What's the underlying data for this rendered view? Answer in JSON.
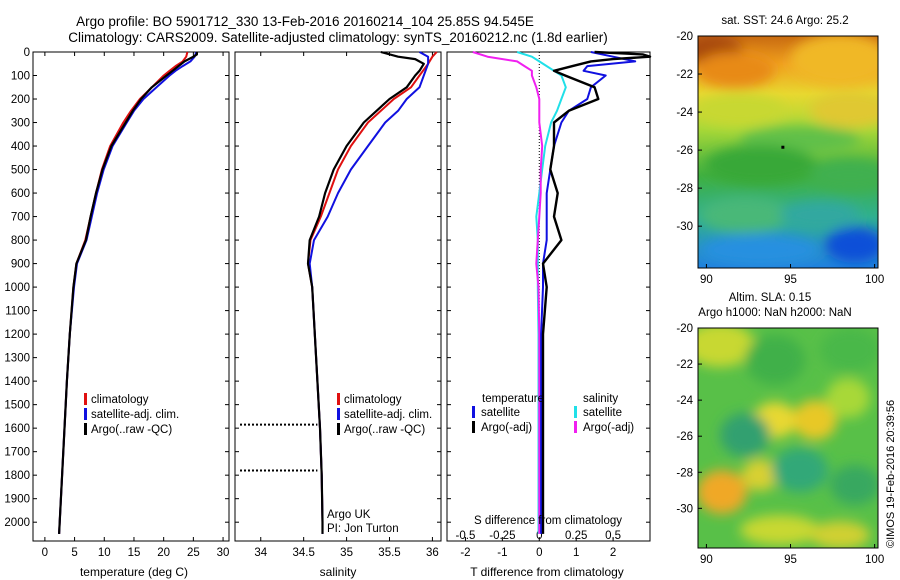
{
  "header": {
    "line1": "Argo profile: BO 5901712_330 13-Feb-2016 20160214_104 25.85S 94.545E",
    "line2": "Climatology: CARS2009. Satellite-adjusted climatology: synTS_20160212.nc (1.8d earlier)"
  },
  "credit": "©IMOS 19-Feb-2016 20:39:56",
  "colors": {
    "climatology": "#e01010",
    "satellite": "#1010e0",
    "argo": "#000000",
    "sal_satellite": "#20e0e8",
    "sal_argo": "#f020f0"
  },
  "chart_data": [
    {
      "type": "line",
      "id": "temperature",
      "xlabel": "temperature (deg C)",
      "xlim": [
        -2,
        31
      ],
      "ylim": [
        2080,
        0
      ],
      "xticks": [
        0,
        5,
        10,
        15,
        20,
        25,
        30
      ],
      "yticks": [
        0,
        100,
        200,
        300,
        400,
        500,
        600,
        700,
        800,
        900,
        1000,
        1100,
        1200,
        1300,
        1400,
        1500,
        1600,
        1700,
        1800,
        1900,
        2000
      ],
      "legend": [
        "climatology",
        "satellite-adj. clim.",
        "Argo(..raw -QC)"
      ],
      "series": [
        {
          "name": "climatology",
          "depth": [
            0,
            20,
            40,
            60,
            80,
            100,
            150,
            200,
            250,
            300,
            400,
            500,
            600,
            700,
            800,
            900,
            1000,
            1200,
            1400,
            1600,
            1800,
            2000,
            2050
          ],
          "values": [
            24.0,
            23.8,
            23.2,
            22.0,
            21.0,
            20.0,
            18.0,
            16.0,
            14.5,
            13.2,
            11.0,
            9.6,
            8.6,
            7.7,
            6.8,
            5.3,
            4.8,
            4.2,
            3.7,
            3.3,
            2.9,
            2.5,
            2.4
          ]
        },
        {
          "name": "satellite-adj. clim.",
          "depth": [
            0,
            20,
            40,
            60,
            80,
            100,
            150,
            200,
            250,
            300,
            400,
            500,
            600,
            700,
            800,
            900,
            1000,
            1200,
            1400,
            1600,
            1800,
            2000,
            2050
          ],
          "values": [
            25.5,
            25.2,
            24.5,
            23.2,
            22.0,
            21.0,
            18.8,
            16.6,
            15.0,
            13.8,
            11.4,
            9.9,
            8.8,
            7.9,
            7.0,
            5.4,
            4.9,
            4.2,
            3.7,
            3.3,
            2.9,
            2.5,
            2.4
          ]
        },
        {
          "name": "Argo(..raw -QC)",
          "depth": [
            0,
            10,
            20,
            40,
            60,
            80,
            100,
            150,
            200,
            250,
            300,
            400,
            500,
            600,
            700,
            800,
            900,
            1000,
            1200,
            1400,
            1600,
            1800,
            2000,
            2050
          ],
          "values": [
            25.6,
            25.6,
            25.0,
            23.5,
            22.5,
            21.5,
            20.5,
            18.0,
            16.2,
            14.8,
            13.6,
            11.2,
            9.7,
            8.6,
            7.7,
            6.9,
            5.3,
            4.8,
            4.2,
            3.7,
            3.3,
            2.9,
            2.5,
            2.4
          ]
        }
      ]
    },
    {
      "type": "line",
      "id": "salinity",
      "xlabel": "salinity",
      "xlim": [
        33.7,
        36.1
      ],
      "ylim": [
        2080,
        0
      ],
      "xticks": [
        34,
        34.5,
        35,
        35.5,
        36
      ],
      "legend": [
        "climatology",
        "satellite-adj. clim.",
        "Argo(..raw -QC)"
      ],
      "annotation": [
        "Argo UK",
        "PI: Jon Turton"
      ],
      "qc_depths": [
        1585,
        1780
      ],
      "series": [
        {
          "name": "climatology",
          "depth": [
            0,
            20,
            50,
            100,
            150,
            200,
            250,
            300,
            400,
            500,
            600,
            700,
            800,
            900,
            1000,
            1200,
            1400,
            1600,
            1800,
            2000,
            2050
          ],
          "values": [
            36.05,
            36.0,
            35.95,
            35.85,
            35.75,
            35.55,
            35.4,
            35.25,
            35.05,
            34.9,
            34.8,
            34.7,
            34.58,
            34.55,
            34.6,
            34.63,
            34.66,
            34.69,
            34.71,
            34.72,
            34.72
          ]
        },
        {
          "name": "satellite-adj. clim.",
          "depth": [
            0,
            20,
            50,
            100,
            150,
            200,
            250,
            300,
            400,
            500,
            600,
            700,
            800,
            900,
            1000,
            1200,
            1400,
            1600,
            1800,
            2000,
            2050
          ],
          "values": [
            35.85,
            35.95,
            35.95,
            35.9,
            35.85,
            35.7,
            35.6,
            35.45,
            35.25,
            35.05,
            34.9,
            34.78,
            34.62,
            34.57,
            34.6,
            34.63,
            34.66,
            34.69,
            34.71,
            34.72,
            34.72
          ]
        },
        {
          "name": "Argo(..raw -QC)",
          "depth": [
            0,
            20,
            30,
            50,
            80,
            100,
            150,
            200,
            250,
            300,
            400,
            500,
            600,
            700,
            800,
            900,
            1000,
            1200,
            1400,
            1600,
            1800,
            2000,
            2050
          ],
          "values": [
            35.4,
            35.6,
            35.8,
            35.9,
            35.85,
            35.8,
            35.7,
            35.5,
            35.35,
            35.2,
            35.0,
            34.85,
            34.75,
            34.68,
            34.57,
            34.55,
            34.6,
            34.63,
            34.66,
            34.69,
            34.71,
            34.72,
            34.72
          ]
        }
      ]
    },
    {
      "type": "line",
      "id": "difference",
      "xlabel": "T difference from climatology",
      "xlabel_top": "S difference from climatology",
      "xlim": [
        -2.5,
        3.0
      ],
      "ylim": [
        2080,
        0
      ],
      "xticks": [
        -2,
        -1,
        0,
        1,
        2
      ],
      "sticks_top": [
        -0.5,
        -0.25,
        0,
        0.25,
        0.5
      ],
      "sticks_top_labels": [
        "-0.5",
        "-0.25",
        "0",
        "0.25",
        "0.5"
      ],
      "legend_groups": [
        "temperature",
        "salinity"
      ],
      "legend": {
        "temperature": [
          "satellite",
          "Argo(-adj)"
        ],
        "salinity": [
          "satellite",
          "Argo(-adj)"
        ]
      },
      "series": [
        {
          "name": "temperature satellite",
          "depth": [
            0,
            20,
            40,
            60,
            80,
            100,
            150,
            200,
            250,
            300,
            400,
            500,
            600,
            700,
            800,
            900,
            1000,
            1200,
            1400,
            1600,
            1800,
            2000,
            2050
          ],
          "values": [
            1.4,
            2.0,
            2.6,
            1.3,
            1.2,
            1.8,
            1.4,
            1.3,
            0.8,
            0.6,
            0.4,
            0.3,
            0.2,
            0.2,
            0.2,
            0.1,
            0.1,
            0.05,
            0.05,
            0.05,
            0.05,
            0.05,
            0.05
          ]
        },
        {
          "name": "temperature Argo(-adj)",
          "depth": [
            0,
            10,
            20,
            30,
            40,
            60,
            80,
            100,
            150,
            200,
            250,
            300,
            400,
            500,
            600,
            700,
            800,
            900,
            1000,
            1200,
            1400,
            1600,
            1800,
            2000,
            2050
          ],
          "values": [
            1.5,
            2.8,
            3.0,
            2.0,
            1.4,
            0.9,
            0.4,
            0.7,
            1.5,
            1.6,
            0.8,
            0.4,
            0.4,
            0.3,
            0.5,
            0.4,
            0.6,
            0.1,
            0.2,
            0.1,
            0.1,
            0.1,
            0.1,
            0.1,
            0.1
          ]
        },
        {
          "name": "salinity satellite",
          "depth": [
            0,
            20,
            40,
            60,
            80,
            100,
            150,
            200,
            250,
            300,
            400,
            500,
            600,
            700,
            800,
            900,
            1000,
            1200,
            1400,
            1600,
            1800,
            2000,
            2050
          ],
          "values": [
            -0.15,
            -0.05,
            0.0,
            0.05,
            0.1,
            0.15,
            0.18,
            0.15,
            0.12,
            0.08,
            0.04,
            0.02,
            0.0,
            -0.02,
            -0.01,
            -0.01,
            -0.01,
            -0.005,
            -0.005,
            -0.005,
            -0.005,
            -0.005,
            -0.005
          ]
        },
        {
          "name": "salinity Argo(-adj)",
          "depth": [
            0,
            20,
            40,
            60,
            80,
            100,
            150,
            200,
            250,
            300,
            400,
            500,
            600,
            700,
            800,
            900,
            1000,
            1200,
            1400,
            1600,
            1800,
            2000,
            2050
          ],
          "values": [
            -0.45,
            -0.35,
            -0.15,
            -0.1,
            -0.05,
            -0.05,
            -0.02,
            0.0,
            0.0,
            0.0,
            0.02,
            0.01,
            0.01,
            0.0,
            -0.01,
            -0.02,
            -0.005,
            0.0,
            0.0,
            0.0,
            0.0,
            0.0,
            0.0
          ]
        }
      ]
    },
    {
      "type": "heatmap",
      "id": "sst-map",
      "title": "sat. SST: 24.6 Argo: 25.2",
      "xlim": [
        89.5,
        100.2
      ],
      "ylim": [
        -20,
        -32.2
      ],
      "xticks": [
        90,
        95,
        100
      ],
      "yticks": [
        -20,
        -22,
        -24,
        -26,
        -28,
        -30
      ]
    },
    {
      "type": "heatmap",
      "id": "sla-map",
      "title_lines": [
        "Altim. SLA: 0.15",
        "Argo h1000: NaN h2000: NaN"
      ],
      "xlim": [
        89.5,
        100.2
      ],
      "ylim": [
        -20,
        -32.2
      ],
      "xticks": [
        90,
        95,
        100
      ],
      "yticks": [
        -20,
        -22,
        -24,
        -26,
        -28,
        -30
      ]
    }
  ]
}
